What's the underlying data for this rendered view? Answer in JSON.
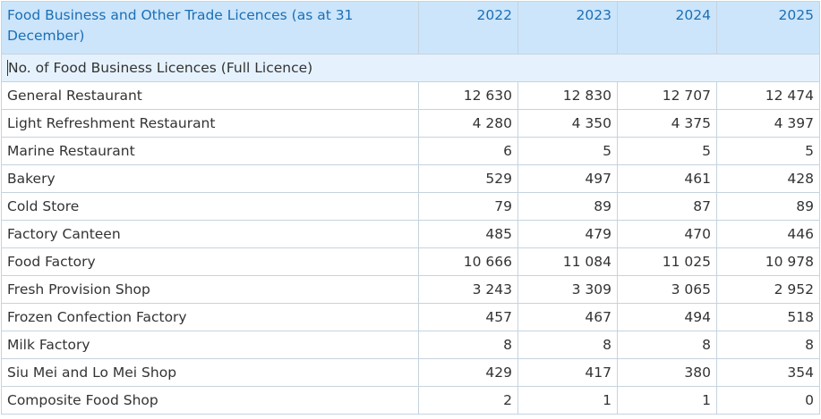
{
  "header": {
    "title": "Food Business and Other Trade Licences (as at 31 December)",
    "years": [
      "2022",
      "2023",
      "2024",
      "2025"
    ]
  },
  "section_label": "No. of Food Business Licences (Full Licence)",
  "rows": [
    {
      "label": "General Restaurant",
      "values": [
        "12 630",
        "12 830",
        "12 707",
        "12 474"
      ]
    },
    {
      "label": "Light Refreshment Restaurant",
      "values": [
        "4 280",
        "4 350",
        "4 375",
        "4 397"
      ]
    },
    {
      "label": "Marine Restaurant",
      "values": [
        "6",
        "5",
        "5",
        "5"
      ]
    },
    {
      "label": "Bakery",
      "values": [
        "529",
        "497",
        "461",
        "428"
      ]
    },
    {
      "label": "Cold Store",
      "values": [
        "79",
        "89",
        "87",
        "89"
      ]
    },
    {
      "label": "Factory Canteen",
      "values": [
        "485",
        "479",
        "470",
        "446"
      ]
    },
    {
      "label": "Food Factory",
      "values": [
        "10 666",
        "11 084",
        "11 025",
        "10 978"
      ]
    },
    {
      "label": "Fresh Provision Shop",
      "values": [
        "3 243",
        "3 309",
        "3 065",
        "2 952"
      ]
    },
    {
      "label": "Frozen Confection Factory",
      "values": [
        "457",
        "467",
        "494",
        "518"
      ]
    },
    {
      "label": "Milk Factory",
      "values": [
        "8",
        "8",
        "8",
        "8"
      ]
    },
    {
      "label": "Siu Mei and Lo Mei Shop",
      "values": [
        "429",
        "417",
        "380",
        "354"
      ]
    },
    {
      "label": "Composite Food Shop",
      "values": [
        "2",
        "1",
        "1",
        "0"
      ]
    }
  ]
}
